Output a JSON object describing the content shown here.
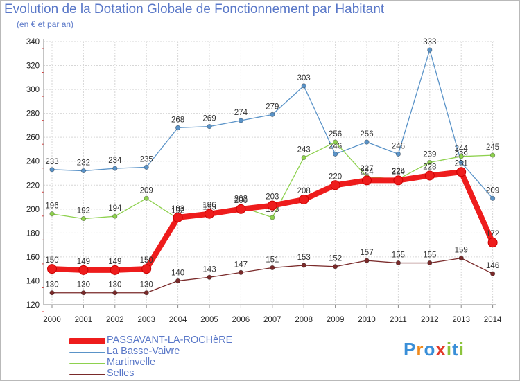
{
  "header": {
    "title": "Evolution de la Dotation Globale de Fonctionnement par Habitant",
    "subtitle": "(en € et par an)"
  },
  "logo": {
    "text": "Proxiti",
    "letters": [
      {
        "ch": "P",
        "color": "#3a8fd8"
      },
      {
        "ch": "r",
        "color": "#f08a1c"
      },
      {
        "ch": "o",
        "color": "#3a8fd8"
      },
      {
        "ch": "x",
        "color": "#e23a2a"
      },
      {
        "ch": "i",
        "color": "#8cc43c"
      },
      {
        "ch": "t",
        "color": "#3a8fd8"
      },
      {
        "ch": "i",
        "color": "#8cc43c"
      }
    ]
  },
  "chart_data": {
    "type": "line",
    "title": "Evolution de la Dotation Globale de Fonctionnement par Habitant",
    "subtitle": "(en € et par an)",
    "x": [
      "2000",
      "2001",
      "2002",
      "2003",
      "2004",
      "2005",
      "2006",
      "2007",
      "2008",
      "2009",
      "2010",
      "2011",
      "2012",
      "2013",
      "2014"
    ],
    "ylim": [
      120,
      340
    ],
    "yticks": [
      120,
      140,
      160,
      180,
      200,
      220,
      240,
      260,
      280,
      300,
      320,
      340
    ],
    "grid": true,
    "legend_position": "bottom-left",
    "series": [
      {
        "name": "PASSAVANT-LA-ROCHèRE",
        "color": "#ee1c1c",
        "emphasis": true,
        "values": [
          150,
          149,
          149,
          150,
          193,
          196,
          200,
          203,
          208,
          220,
          224,
          224,
          228,
          231,
          172
        ]
      },
      {
        "name": "La Basse-Vaivre",
        "color": "#5a93c8",
        "values": [
          233,
          232,
          234,
          235,
          268,
          269,
          274,
          279,
          303,
          246,
          256,
          246,
          333,
          239,
          209
        ]
      },
      {
        "name": "Martinvelle",
        "color": "#8ed14e",
        "values": [
          196,
          192,
          194,
          209,
          192,
          195,
          202,
          193,
          243,
          256,
          227,
          225,
          239,
          244,
          245
        ]
      },
      {
        "name": "Selles",
        "color": "#7a2a2a",
        "values": [
          130,
          130,
          130,
          130,
          140,
          143,
          147,
          151,
          153,
          152,
          157,
          155,
          155,
          159,
          146
        ]
      }
    ]
  }
}
